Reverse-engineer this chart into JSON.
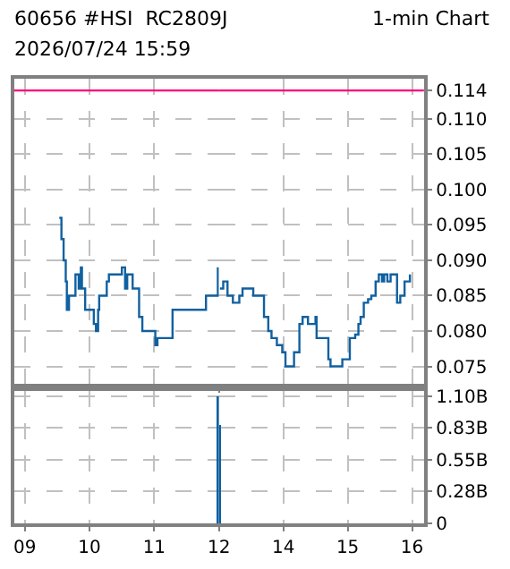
{
  "chart_data": [
    {
      "type": "step",
      "title": "60656 #HSI  RC2809J",
      "annotations": [
        "1-min Chart",
        "2026/07/24 15:59"
      ],
      "x": [
        "2026-07-24T09:32",
        "2026-07-24T09:34",
        "2026-07-24T09:36",
        "2026-07-24T09:38",
        "2026-07-24T09:39",
        "2026-07-24T09:41",
        "2026-07-24T09:46",
        "2026-07-24T09:47",
        "2026-07-24T09:50",
        "2026-07-24T09:52",
        "2026-07-24T09:53",
        "2026-07-24T09:56",
        "2026-07-24T10:03",
        "2026-07-24T10:04",
        "2026-07-24T10:06",
        "2026-07-24T10:08",
        "2026-07-24T10:09",
        "2026-07-24T10:14",
        "2026-07-24T10:16",
        "2026-07-24T10:18",
        "2026-07-24T10:28",
        "2026-07-24T10:30",
        "2026-07-24T10:32",
        "2026-07-24T10:33",
        "2026-07-24T10:35",
        "2026-07-24T10:38",
        "2026-07-24T10:40",
        "2026-07-24T10:45",
        "2026-07-24T10:46",
        "2026-07-24T10:49",
        "2026-07-24T11:00",
        "2026-07-24T11:01",
        "2026-07-24T11:03",
        "2026-07-24T11:15",
        "2026-07-24T11:17",
        "2026-07-24T11:46",
        "2026-07-24T11:48",
        "2026-07-24T11:59"
      ],
      "series": [
        {
          "color": "#1060a0",
          "values": [
            0.096,
            0.093,
            0.09,
            0.087,
            0.083,
            0.085,
            0.085,
            0.088,
            0.086,
            0.089,
            0.086,
            0.083,
            0.083,
            0.081,
            0.08,
            0.083,
            0.085,
            0.085,
            0.087,
            0.088,
            0.088,
            0.089,
            0.089,
            0.086,
            0.088,
            0.088,
            0.086,
            0.086,
            0.082,
            0.08,
            0.08,
            0.078,
            0.079,
            0.079,
            0.083,
            0.083,
            0.085,
            0.089
          ]
        }
      ],
      "ref_lines": [
        {
          "axis": "y",
          "value": 0.114,
          "color": "#ff0080"
        }
      ],
      "xlim": [
        "2026-07-24T08:50",
        "2026-07-24T12:00"
      ],
      "xticks": [
        {
          "value": "2026-07-24T09:00",
          "label": null
        },
        {
          "value": "2026-07-24T10:00",
          "label": null
        },
        {
          "value": "2026-07-24T11:00",
          "label": null
        },
        {
          "value": "2026-07-24T12:00",
          "label": null
        }
      ],
      "ylim": [
        0.0725,
        0.1157
      ],
      "yticks": [
        {
          "value": 0.075,
          "label": null
        },
        {
          "value": 0.08,
          "label": null
        },
        {
          "value": 0.085,
          "label": null
        },
        {
          "value": 0.09,
          "label": null
        },
        {
          "value": 0.095,
          "label": null
        },
        {
          "value": 0.1,
          "label": null
        },
        {
          "value": 0.105,
          "label": null
        },
        {
          "value": 0.11,
          "label": null
        },
        {
          "value": 0.114,
          "label": null
        }
      ],
      "grid": true,
      "tick_labels": false
    },
    {
      "type": "step",
      "x": [
        "2026-07-24T13:01",
        "2026-07-24T13:04",
        "2026-07-24T13:08",
        "2026-07-24T13:11",
        "2026-07-24T13:13",
        "2026-07-24T13:19",
        "2026-07-24T13:22",
        "2026-07-24T13:31",
        "2026-07-24T13:32",
        "2026-07-24T13:39",
        "2026-07-24T13:42",
        "2026-07-24T13:46",
        "2026-07-24T13:49",
        "2026-07-24T13:54",
        "2026-07-24T13:59",
        "2026-07-24T14:02",
        "2026-07-24T14:08",
        "2026-07-24T14:10",
        "2026-07-24T14:14",
        "2026-07-24T14:15",
        "2026-07-24T14:18",
        "2026-07-24T14:23",
        "2026-07-24T14:28",
        "2026-07-24T14:30",
        "2026-07-24T14:31",
        "2026-07-24T14:40",
        "2026-07-24T14:42",
        "2026-07-24T14:44",
        "2026-07-24T14:53",
        "2026-07-24T14:55",
        "2026-07-24T15:01",
        "2026-07-24T15:02",
        "2026-07-24T15:07",
        "2026-07-24T15:10",
        "2026-07-24T15:12",
        "2026-07-24T15:15",
        "2026-07-24T15:19",
        "2026-07-24T15:22",
        "2026-07-24T15:26",
        "2026-07-24T15:29",
        "2026-07-24T15:32",
        "2026-07-24T15:34",
        "2026-07-24T15:37",
        "2026-07-24T15:40",
        "2026-07-24T15:44",
        "2026-07-24T15:46",
        "2026-07-24T15:49",
        "2026-07-24T15:53",
        "2026-07-24T15:57",
        "2026-07-24T15:58"
      ],
      "series": [
        {
          "color": "#1060a0",
          "values": [
            0.086,
            0.087,
            0.085,
            0.085,
            0.084,
            0.085,
            0.086,
            0.086,
            0.085,
            0.085,
            0.082,
            0.08,
            0.079,
            0.078,
            0.077,
            0.075,
            0.075,
            0.077,
            0.077,
            0.081,
            0.082,
            0.081,
            0.081,
            0.082,
            0.079,
            0.079,
            0.076,
            0.075,
            0.075,
            0.076,
            0.076,
            0.079,
            0.0795,
            0.081,
            0.082,
            0.084,
            0.0845,
            0.085,
            0.087,
            0.088,
            0.087,
            0.088,
            0.087,
            0.088,
            0.088,
            0.084,
            0.085,
            0.087,
            0.087,
            0.088
          ]
        }
      ],
      "ref_lines": [
        {
          "axis": "y",
          "value": 0.114,
          "color": "#ff0080"
        }
      ],
      "xlim": [
        "2026-07-24T13:00",
        "2026-07-24T16:11"
      ],
      "xticks": [
        {
          "value": "2026-07-24T14:00",
          "label": null
        },
        {
          "value": "2026-07-24T15:00",
          "label": null
        },
        {
          "value": "2026-07-24T16:00",
          "label": null
        }
      ],
      "ylim": [
        0.0725,
        0.1157
      ],
      "yticks": [
        {
          "value": 0.075,
          "label": "0.075"
        },
        {
          "value": 0.08,
          "label": "0.080"
        },
        {
          "value": 0.085,
          "label": "0.085"
        },
        {
          "value": 0.09,
          "label": "0.090"
        },
        {
          "value": 0.095,
          "label": "0.095"
        },
        {
          "value": 0.1,
          "label": "0.100"
        },
        {
          "value": 0.105,
          "label": "0.105"
        },
        {
          "value": 0.11,
          "label": "0.110"
        },
        {
          "value": 0.114,
          "label": "0.114"
        }
      ],
      "grid": true,
      "tick_labels": "y"
    },
    {
      "type": "bar",
      "x": [
        "2026-07-24T11:59"
      ],
      "series": [
        {
          "color": "#1060a0",
          "values": [
            1.1
          ]
        }
      ],
      "xlim": [
        "2026-07-24T08:50",
        "2026-07-24T12:00"
      ],
      "xticks": [
        {
          "value": "2026-07-24T09:00",
          "label": "09"
        },
        {
          "value": "2026-07-24T10:00",
          "label": "10"
        },
        {
          "value": "2026-07-24T11:00",
          "label": "11"
        },
        {
          "value": "2026-07-24T12:00",
          "label": "12"
        }
      ],
      "ylim": [
        0,
        1.145
      ],
      "yticks": [
        {
          "value": 0,
          "label": null
        },
        {
          "value": 0.275,
          "label": null
        },
        {
          "value": 0.55,
          "label": null
        },
        {
          "value": 0.825,
          "label": null
        },
        {
          "value": 1.1,
          "label": null
        }
      ],
      "grid": true,
      "tick_labels": "x"
    },
    {
      "type": "bar",
      "x": [
        "2026-07-24T13:01"
      ],
      "series": [
        {
          "color": "#1060a0",
          "values": [
            0.85
          ]
        }
      ],
      "xlim": [
        "2026-07-24T13:00",
        "2026-07-24T16:11"
      ],
      "xticks": [
        {
          "value": "2026-07-24T14:00",
          "label": "14"
        },
        {
          "value": "2026-07-24T15:00",
          "label": "15"
        },
        {
          "value": "2026-07-24T16:00",
          "label": "16"
        }
      ],
      "ylim": [
        0,
        1.145
      ],
      "yticks": [
        0,
        {
          "value": 0.275,
          "label": "0.28B"
        },
        {
          "value": 0.55,
          "label": "0.55B"
        },
        {
          "value": 0.825,
          "label": "0.83B"
        },
        {
          "value": 1.1,
          "label": "1.10B"
        }
      ],
      "grid": true
    }
  ]
}
